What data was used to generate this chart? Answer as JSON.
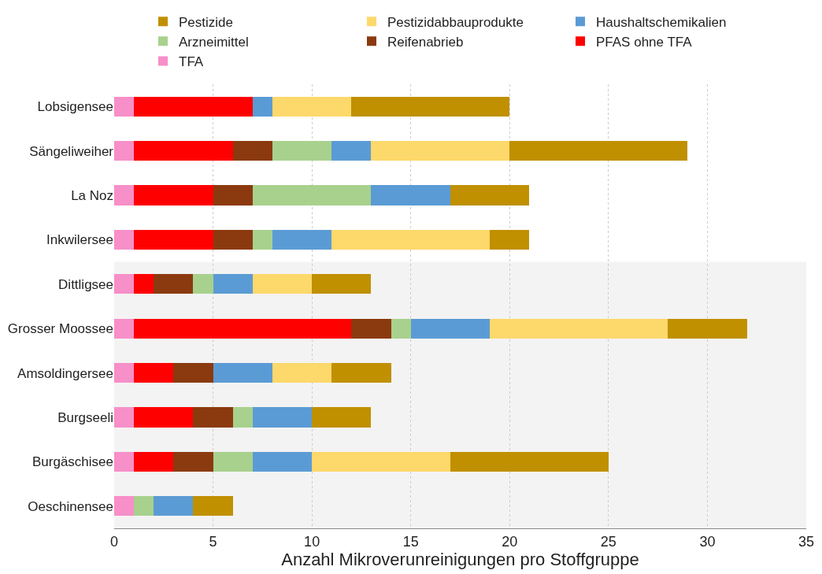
{
  "chart_data": {
    "type": "bar",
    "orientation": "horizontal",
    "stacked": true,
    "categories": [
      "Lobsigensee",
      "Sängeliweiher",
      "La Noz",
      "Inkwilersee",
      "Dittligsee",
      "Grosser Moossee",
      "Amsoldingersee",
      "Burgseeli",
      "Burgäschisee",
      "Oeschinensee"
    ],
    "series": [
      {
        "name": "TFA",
        "color": "#f78fc8",
        "values": [
          1,
          1,
          1,
          1,
          1,
          1,
          1,
          1,
          1,
          1
        ]
      },
      {
        "name": "PFAS ohne TFA",
        "color": "#ff0000",
        "values": [
          6,
          5,
          4,
          4,
          1,
          11,
          2,
          3,
          2,
          0
        ]
      },
      {
        "name": "Reifenabrieb",
        "color": "#8b3a0f",
        "values": [
          0,
          2,
          2,
          2,
          2,
          2,
          2,
          2,
          2,
          0
        ]
      },
      {
        "name": "Arzneimittel",
        "color": "#a8d18d",
        "values": [
          0,
          3,
          6,
          1,
          1,
          1,
          0,
          1,
          2,
          1
        ]
      },
      {
        "name": "Haushaltschemikalien",
        "color": "#5b9bd5",
        "values": [
          1,
          2,
          4,
          3,
          2,
          4,
          3,
          3,
          3,
          2
        ]
      },
      {
        "name": "Pestizidabbauprodukte",
        "color": "#fdd86b",
        "values": [
          4,
          7,
          0,
          8,
          3,
          9,
          3,
          0,
          7,
          0
        ]
      },
      {
        "name": "Pestizide",
        "color": "#c09000",
        "values": [
          8,
          9,
          4,
          2,
          3,
          4,
          3,
          3,
          8,
          2
        ]
      }
    ],
    "xlabel": "Anzahl Mikroverunreinigungen pro Stoffgruppe",
    "xlim": [
      0,
      35
    ],
    "xticks": [
      0,
      5,
      10,
      15,
      20,
      25,
      30,
      35
    ],
    "grid": "x",
    "legend": "top",
    "bands": [
      {
        "axis": "y",
        "from": "Dittligsee",
        "to": "Oeschinensee",
        "color": "#f3f3f3"
      }
    ]
  }
}
